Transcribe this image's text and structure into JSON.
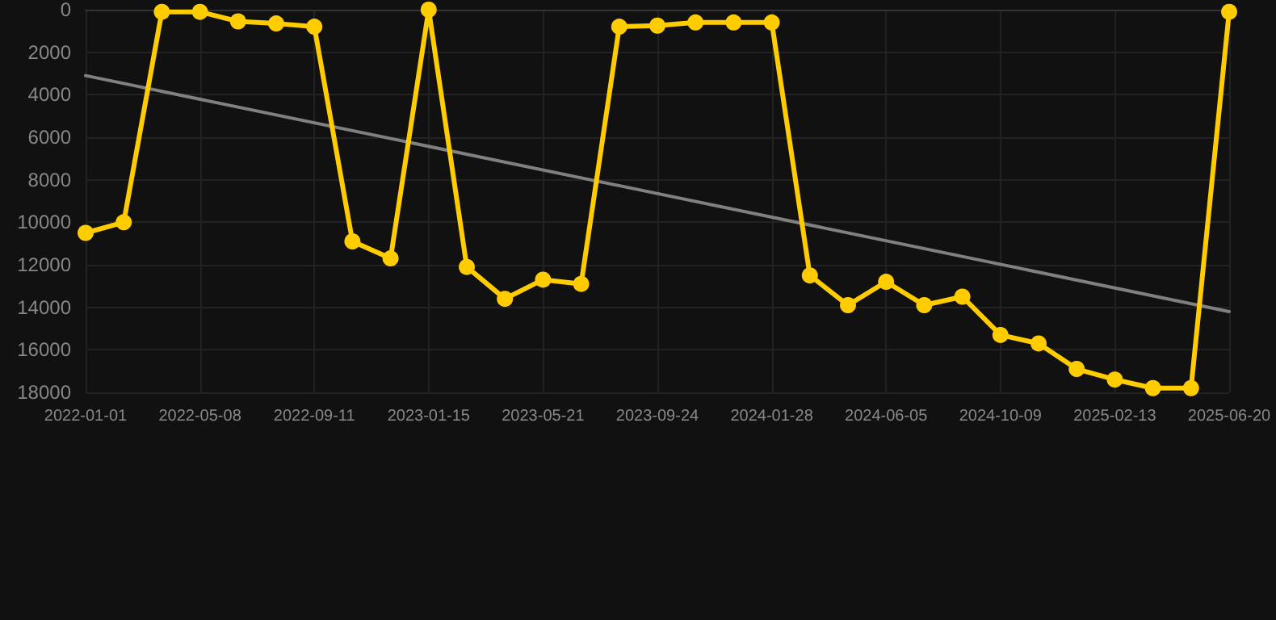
{
  "chart_data": {
    "type": "line",
    "categories": [
      "2022-01-01",
      null,
      null,
      "2022-05-08",
      null,
      null,
      "2022-09-11",
      null,
      null,
      "2023-01-15",
      null,
      null,
      "2023-05-21",
      null,
      null,
      "2023-09-24",
      null,
      null,
      "2024-01-28",
      null,
      null,
      "2024-06-05",
      null,
      null,
      "2024-10-09",
      null,
      null,
      "2025-02-13",
      null,
      null,
      "2025-06-20"
    ],
    "series": [
      {
        "color": "#ffcc00",
        "marker": "circle",
        "values": [
          10500,
          10000,
          100,
          100,
          550,
          650,
          800,
          10900,
          11700,
          0,
          12100,
          13600,
          12700,
          12900,
          800,
          750,
          600,
          600,
          600,
          12500,
          13900,
          12800,
          13900,
          13500,
          15300,
          15700,
          16900,
          17400,
          17800,
          17800,
          100
        ]
      },
      {
        "color": "#808080",
        "marker": "none",
        "values": [
          3100,
          null,
          null,
          null,
          null,
          null,
          null,
          null,
          null,
          null,
          null,
          null,
          null,
          null,
          null,
          null,
          null,
          null,
          null,
          null,
          null,
          null,
          null,
          null,
          null,
          null,
          null,
          null,
          null,
          null,
          14200
        ]
      }
    ],
    "ylim": [
      18000,
      0
    ],
    "yticks": [
      0,
      2000,
      4000,
      6000,
      8000,
      10000,
      12000,
      14000,
      16000,
      18000
    ],
    "grid": true
  }
}
